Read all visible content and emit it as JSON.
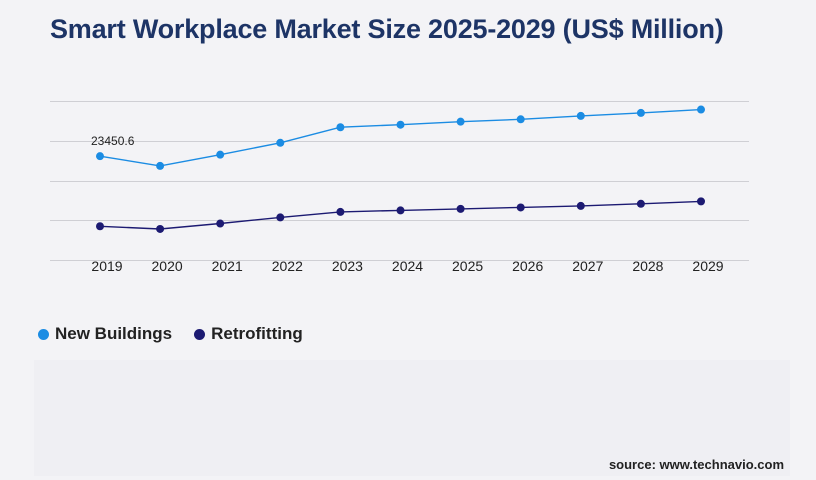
{
  "page": {
    "title": "Smart Workplace Market Size 2025-2029 (US$ Million)",
    "source": "source: www.technavio.com"
  },
  "chart_data": {
    "type": "line",
    "title": "Smart Workplace Market Size 2025-2029 (US$ Million)",
    "xlabel": "",
    "ylabel": "",
    "categories": [
      "2019",
      "2020",
      "2021",
      "2022",
      "2023",
      "2024",
      "2025",
      "2026",
      "2027",
      "2028",
      "2029"
    ],
    "series": [
      {
        "name": "New Buildings",
        "color": "#1b8ce3",
        "values": [
          23450.6,
          22230,
          23640,
          25130,
          27080,
          27400,
          27780,
          28080,
          28500,
          28880,
          29300
        ]
      },
      {
        "name": "Retrofitting",
        "color": "#1c1a72",
        "values": [
          14660,
          14320,
          15000,
          15770,
          16460,
          16650,
          16840,
          17020,
          17210,
          17480,
          17780
        ]
      }
    ],
    "data_labels": [
      {
        "series": 0,
        "index": 0,
        "text": "23450.6"
      }
    ],
    "ylim": [
      9800,
      31000
    ],
    "grid": true,
    "gridlines_y": [
      10400,
      15400,
      20400,
      25400,
      30400
    ],
    "legend_position": "bottom-left"
  }
}
